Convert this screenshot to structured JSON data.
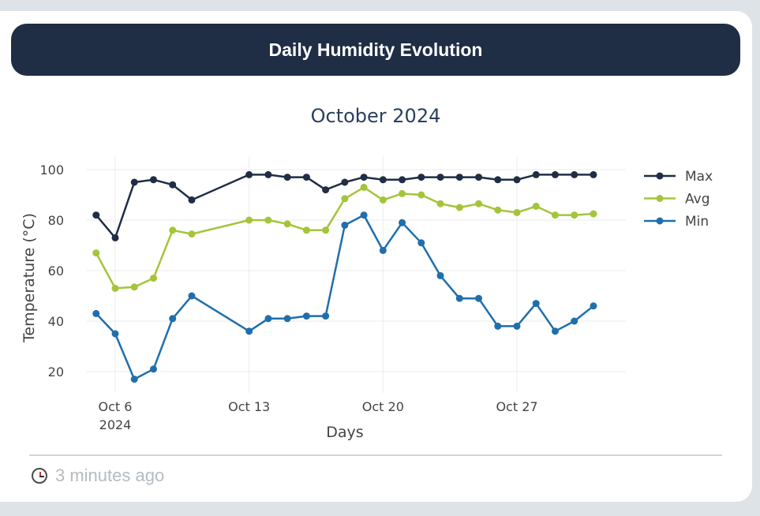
{
  "card": {
    "header_title": "Daily Humidity Evolution",
    "footer_icon": "clock-icon",
    "footer_text": "3 minutes ago"
  },
  "chart_data": {
    "type": "line",
    "title": "October 2024",
    "xlabel": "Days",
    "ylabel": "Temperature (°C)",
    "x_ticks": [
      {
        "date": "2024-10-06",
        "label": "Oct 6",
        "sublabel": "2024"
      },
      {
        "date": "2024-10-13",
        "label": "Oct 13",
        "sublabel": ""
      },
      {
        "date": "2024-10-20",
        "label": "Oct 20",
        "sublabel": ""
      },
      {
        "date": "2024-10-27",
        "label": "Oct 27",
        "sublabel": ""
      }
    ],
    "y_ticks": [
      20,
      40,
      60,
      80,
      100
    ],
    "ylim": [
      12,
      108
    ],
    "xlim": [
      "2024-10-04",
      "2024-11-02"
    ],
    "grid": true,
    "legend_position": "top-right",
    "series": [
      {
        "name": "Max",
        "color": "#1f2d45",
        "points": [
          [
            "2024-10-05",
            82
          ],
          [
            "2024-10-06",
            73
          ],
          [
            "2024-10-07",
            95
          ],
          [
            "2024-10-08",
            96
          ],
          [
            "2024-10-09",
            94
          ],
          [
            "2024-10-10",
            88
          ],
          [
            "2024-10-13",
            98
          ],
          [
            "2024-10-14",
            98
          ],
          [
            "2024-10-15",
            97
          ],
          [
            "2024-10-16",
            97
          ],
          [
            "2024-10-17",
            92
          ],
          [
            "2024-10-18",
            95
          ],
          [
            "2024-10-19",
            97
          ],
          [
            "2024-10-20",
            96
          ],
          [
            "2024-10-21",
            96
          ],
          [
            "2024-10-22",
            97
          ],
          [
            "2024-10-23",
            97
          ],
          [
            "2024-10-24",
            97
          ],
          [
            "2024-10-25",
            97
          ],
          [
            "2024-10-26",
            96
          ],
          [
            "2024-10-27",
            96
          ],
          [
            "2024-10-28",
            98
          ],
          [
            "2024-10-29",
            98
          ],
          [
            "2024-10-30",
            98
          ],
          [
            "2024-10-31",
            98
          ]
        ]
      },
      {
        "name": "Avg",
        "color": "#a3c53a",
        "points": [
          [
            "2024-10-05",
            67
          ],
          [
            "2024-10-06",
            53
          ],
          [
            "2024-10-07",
            53.5
          ],
          [
            "2024-10-08",
            57
          ],
          [
            "2024-10-09",
            76
          ],
          [
            "2024-10-10",
            74.5
          ],
          [
            "2024-10-13",
            80
          ],
          [
            "2024-10-14",
            80
          ],
          [
            "2024-10-15",
            78.5
          ],
          [
            "2024-10-16",
            76
          ],
          [
            "2024-10-17",
            76
          ],
          [
            "2024-10-18",
            88.5
          ],
          [
            "2024-10-19",
            93
          ],
          [
            "2024-10-20",
            88
          ],
          [
            "2024-10-21",
            90.5
          ],
          [
            "2024-10-22",
            90
          ],
          [
            "2024-10-23",
            86.5
          ],
          [
            "2024-10-24",
            85
          ],
          [
            "2024-10-25",
            86.5
          ],
          [
            "2024-10-26",
            84
          ],
          [
            "2024-10-27",
            83
          ],
          [
            "2024-10-28",
            85.5
          ],
          [
            "2024-10-29",
            82
          ],
          [
            "2024-10-30",
            82
          ],
          [
            "2024-10-31",
            82.5
          ]
        ]
      },
      {
        "name": "Min",
        "color": "#1f6fac",
        "points": [
          [
            "2024-10-05",
            43
          ],
          [
            "2024-10-06",
            35
          ],
          [
            "2024-10-07",
            17
          ],
          [
            "2024-10-08",
            21
          ],
          [
            "2024-10-09",
            41
          ],
          [
            "2024-10-10",
            50
          ],
          [
            "2024-10-13",
            36
          ],
          [
            "2024-10-14",
            41
          ],
          [
            "2024-10-15",
            41
          ],
          [
            "2024-10-16",
            42
          ],
          [
            "2024-10-17",
            42
          ],
          [
            "2024-10-18",
            78
          ],
          [
            "2024-10-19",
            82
          ],
          [
            "2024-10-20",
            68
          ],
          [
            "2024-10-21",
            79
          ],
          [
            "2024-10-22",
            71
          ],
          [
            "2024-10-23",
            58
          ],
          [
            "2024-10-24",
            49
          ],
          [
            "2024-10-25",
            49
          ],
          [
            "2024-10-26",
            38
          ],
          [
            "2024-10-27",
            38
          ],
          [
            "2024-10-28",
            47
          ],
          [
            "2024-10-29",
            36
          ],
          [
            "2024-10-30",
            40
          ],
          [
            "2024-10-31",
            46
          ]
        ]
      }
    ]
  }
}
